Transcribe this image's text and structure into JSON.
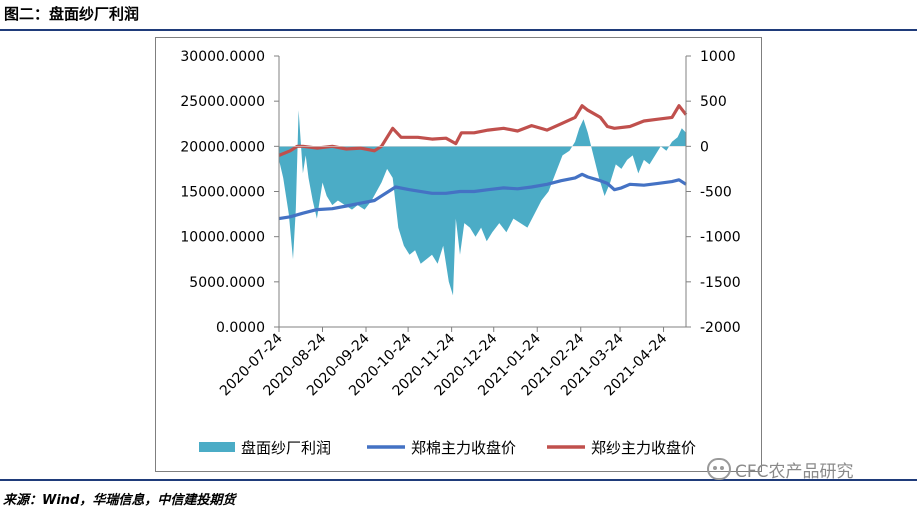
{
  "figure": {
    "title": "图二：盘面纱厂利润",
    "source": "来源：Wind，华瑞信息，中信建投期货",
    "watermark": "CFC农产品研究"
  },
  "colors": {
    "profit": "#4bacc6",
    "cotton": "#4472c4",
    "yarn": "#c0504d",
    "rule": "#1f3b7a"
  },
  "chart_data": {
    "type": "line",
    "x_tick_labels": [
      "2020-07-24",
      "2020-08-24",
      "2020-09-24",
      "2020-10-24",
      "2020-11-24",
      "2020-12-24",
      "2021-01-24",
      "2021-02-24",
      "2021-03-24",
      "2021-04-24"
    ],
    "x_range": [
      "2020-07-24",
      "2021-05-10"
    ],
    "left_axis": {
      "range": [
        0,
        30000
      ],
      "ticks": [
        "0.0000",
        "5000.0000",
        "10000.0000",
        "15000.0000",
        "20000.0000",
        "25000.0000",
        "30000.0000"
      ]
    },
    "right_axis": {
      "range": [
        -2000,
        1000
      ],
      "ticks": [
        "-2000",
        "-1500",
        "-1000",
        "-500",
        "0",
        "500",
        "1000"
      ]
    },
    "legend": {
      "position": "bottom"
    },
    "series": [
      {
        "name": "盘面纱厂利润",
        "kind": "area",
        "axis": "right",
        "x": [
          "2020-07-24",
          "2020-07-27",
          "2020-07-31",
          "2020-08-03",
          "2020-08-05",
          "2020-08-07",
          "2020-08-10",
          "2020-08-12",
          "2020-08-14",
          "2020-08-17",
          "2020-08-20",
          "2020-08-24",
          "2020-08-27",
          "2020-08-31",
          "2020-09-04",
          "2020-09-09",
          "2020-09-14",
          "2020-09-18",
          "2020-09-23",
          "2020-09-28",
          "2020-10-05",
          "2020-10-09",
          "2020-10-13",
          "2020-10-17",
          "2020-10-21",
          "2020-10-25",
          "2020-10-29",
          "2020-11-02",
          "2020-11-06",
          "2020-11-10",
          "2020-11-14",
          "2020-11-18",
          "2020-11-22",
          "2020-11-25",
          "2020-11-27",
          "2020-11-30",
          "2020-12-03",
          "2020-12-07",
          "2020-12-11",
          "2020-12-15",
          "2020-12-19",
          "2020-12-23",
          "2020-12-28",
          "2021-01-02",
          "2021-01-07",
          "2021-01-12",
          "2021-01-17",
          "2021-01-22",
          "2021-01-27",
          "2021-02-01",
          "2021-02-06",
          "2021-02-11",
          "2021-02-16",
          "2021-02-20",
          "2021-02-23",
          "2021-02-26",
          "2021-03-01",
          "2021-03-05",
          "2021-03-09",
          "2021-03-13",
          "2021-03-17",
          "2021-03-21",
          "2021-03-25",
          "2021-03-29",
          "2021-04-02",
          "2021-04-06",
          "2021-04-10",
          "2021-04-14",
          "2021-04-18",
          "2021-04-22",
          "2021-04-26",
          "2021-04-30",
          "2021-05-04",
          "2021-05-07",
          "2021-05-10"
        ],
        "values": [
          -150,
          -350,
          -750,
          -1250,
          -700,
          400,
          -300,
          -100,
          -350,
          -600,
          -800,
          -400,
          -550,
          -650,
          -600,
          -650,
          -700,
          -650,
          -700,
          -600,
          -400,
          -250,
          -350,
          -900,
          -1100,
          -1200,
          -1150,
          -1300,
          -1250,
          -1200,
          -1300,
          -1100,
          -1500,
          -1650,
          -800,
          -1200,
          -850,
          -900,
          -1000,
          -900,
          -1050,
          -950,
          -850,
          -950,
          -800,
          -850,
          -900,
          -750,
          -600,
          -500,
          -300,
          -100,
          -50,
          50,
          200,
          300,
          150,
          -100,
          -350,
          -550,
          -400,
          -200,
          -250,
          -150,
          -100,
          -300,
          -150,
          -200,
          -100,
          0,
          -50,
          50,
          100,
          200,
          150
        ]
      },
      {
        "name": "郑棉主力收盘价",
        "kind": "line",
        "axis": "left",
        "x": [
          "2020-07-24",
          "2020-08-01",
          "2020-08-10",
          "2020-08-20",
          "2020-08-31",
          "2020-09-10",
          "2020-09-20",
          "2020-09-30",
          "2020-10-10",
          "2020-10-15",
          "2020-10-25",
          "2020-11-10",
          "2020-11-20",
          "2020-11-30",
          "2020-12-10",
          "2020-12-20",
          "2020-12-31",
          "2021-01-10",
          "2021-01-20",
          "2021-01-31",
          "2021-02-10",
          "2021-02-20",
          "2021-02-25",
          "2021-03-01",
          "2021-03-10",
          "2021-03-15",
          "2021-03-20",
          "2021-03-25",
          "2021-03-31",
          "2021-04-10",
          "2021-04-20",
          "2021-04-30",
          "2021-05-05",
          "2021-05-10"
        ],
        "values": [
          12000,
          12200,
          12600,
          13000,
          13100,
          13400,
          13700,
          14000,
          15000,
          15500,
          15200,
          14800,
          14800,
          15000,
          15000,
          15200,
          15400,
          15300,
          15500,
          15800,
          16200,
          16500,
          16900,
          16600,
          16200,
          15900,
          15200,
          15400,
          15800,
          15700,
          15900,
          16100,
          16300,
          15800
        ]
      },
      {
        "name": "郑纱主力收盘价",
        "kind": "line",
        "axis": "left",
        "x": [
          "2020-07-24",
          "2020-08-01",
          "2020-08-06",
          "2020-08-10",
          "2020-08-20",
          "2020-08-31",
          "2020-09-10",
          "2020-09-20",
          "2020-09-30",
          "2020-10-05",
          "2020-10-09",
          "2020-10-13",
          "2020-10-19",
          "2020-10-31",
          "2020-11-10",
          "2020-11-20",
          "2020-11-27",
          "2020-12-01",
          "2020-12-10",
          "2020-12-20",
          "2020-12-31",
          "2021-01-10",
          "2021-01-20",
          "2021-01-31",
          "2021-02-10",
          "2021-02-20",
          "2021-02-25",
          "2021-03-01",
          "2021-03-10",
          "2021-03-15",
          "2021-03-20",
          "2021-03-31",
          "2021-04-10",
          "2021-04-20",
          "2021-04-30",
          "2021-05-05",
          "2021-05-10"
        ],
        "values": [
          19000,
          19500,
          20000,
          20000,
          19800,
          20000,
          19700,
          19800,
          19500,
          20000,
          21000,
          22000,
          21000,
          21000,
          20800,
          20900,
          20300,
          21500,
          21500,
          21800,
          22000,
          21700,
          22300,
          21800,
          22500,
          23200,
          24500,
          24000,
          23200,
          22200,
          22000,
          22200,
          22800,
          23000,
          23200,
          24500,
          23500
        ]
      }
    ]
  }
}
